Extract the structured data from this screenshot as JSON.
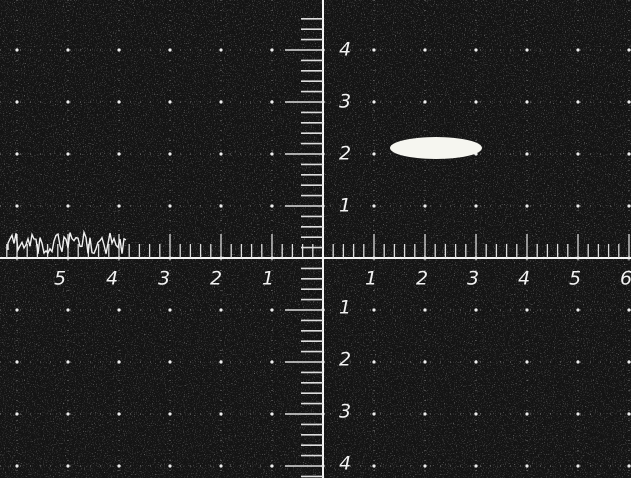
{
  "graticule": {
    "x_axis": {
      "left_labels": [
        "5",
        "4",
        "3",
        "2",
        "1"
      ],
      "right_labels": [
        "1",
        "2",
        "3",
        "4",
        "5",
        "6"
      ]
    },
    "y_axis": {
      "upper_labels": [
        "1",
        "2",
        "3",
        "4"
      ],
      "lower_labels": [
        "1",
        "2",
        "3",
        "4"
      ]
    }
  }
}
